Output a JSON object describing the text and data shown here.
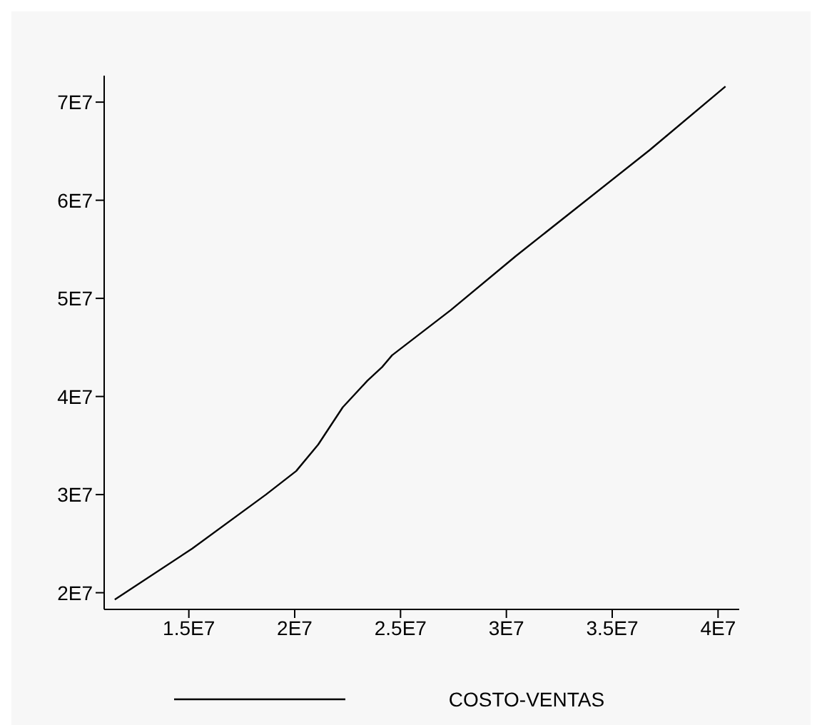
{
  "chart_data": {
    "type": "line",
    "x": [
      11500000,
      15160000,
      18640000,
      20070000,
      21110000,
      22270000,
      23430000,
      24130000,
      24600000,
      27370000,
      30440000,
      36760000,
      40350000
    ],
    "series": [
      {
        "name": "COSTO-VENTAS",
        "color": "#000000",
        "values": [
          19300000,
          24500000,
          30000000,
          32400000,
          35100000,
          38900000,
          41600000,
          43000000,
          44200000,
          48800000,
          54300000,
          65100000,
          71600000
        ]
      }
    ],
    "xlim": [
      11000000,
      41000000
    ],
    "ylim": [
      18300000,
      72700000
    ],
    "xticks": [
      {
        "value": 15000000,
        "label": "1.5E7"
      },
      {
        "value": 20000000,
        "label": "2E7"
      },
      {
        "value": 25000000,
        "label": "2.5E7"
      },
      {
        "value": 30000000,
        "label": "3E7"
      },
      {
        "value": 35000000,
        "label": "3.5E7"
      },
      {
        "value": 40000000,
        "label": "4E7"
      }
    ],
    "yticks": [
      {
        "value": 20000000,
        "label": "2E7"
      },
      {
        "value": 30000000,
        "label": "3E7"
      },
      {
        "value": 40000000,
        "label": "4E7"
      },
      {
        "value": 50000000,
        "label": "5E7"
      },
      {
        "value": 60000000,
        "label": "6E7"
      },
      {
        "value": 70000000,
        "label": "7E7"
      }
    ],
    "grid": false,
    "legend": "bottom",
    "marker": "none",
    "line_style": "solid"
  }
}
